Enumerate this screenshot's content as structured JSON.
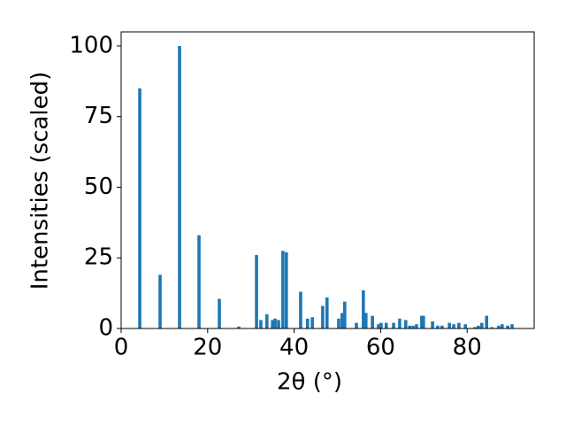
{
  "chart_data": {
    "type": "bar",
    "x_label": "2θ (°)",
    "y_label": "Intensities (scaled)",
    "color": "#1f77b4",
    "x": [
      4.3,
      9.0,
      13.5,
      18.0,
      22.7,
      27.2,
      31.3,
      32.3,
      33.7,
      35.0,
      35.6,
      36.4,
      37.4,
      38.2,
      41.5,
      43.1,
      44.2,
      46.6,
      47.6,
      50.3,
      51.1,
      51.7,
      54.4,
      56.0,
      56.6,
      58.1,
      59.5,
      60.1,
      61.3,
      63.0,
      64.4,
      65.8,
      66.7,
      67.5,
      68.3,
      69.5,
      69.9,
      72.0,
      73.2,
      74.2,
      75.9,
      76.9,
      78.1,
      79.6,
      81.8,
      82.6,
      83.4,
      84.5,
      85.7,
      87.3,
      88.1,
      89.4,
      90.4
    ],
    "values": [
      85,
      19,
      100,
      33,
      10.5,
      0.7,
      26,
      3,
      5,
      3,
      3.5,
      3,
      27.5,
      27,
      13,
      3.5,
      4,
      8,
      11,
      3.5,
      5.5,
      9.5,
      2,
      13.5,
      5.5,
      4.5,
      1.5,
      2,
      2,
      2,
      3.5,
      3,
      1,
      1,
      1.5,
      4.5,
      4.5,
      2.5,
      1,
      1,
      2,
      1.5,
      2,
      1.5,
      0.5,
      1,
      2,
      4.5,
      0.5,
      1,
      1.5,
      1,
      1.5
    ],
    "xlim": [
      0,
      95.5
    ],
    "xticks": [
      0,
      20,
      40,
      60,
      80
    ],
    "ylim": [
      0,
      105
    ],
    "yticks": [
      0,
      25,
      50,
      75,
      100
    ]
  }
}
